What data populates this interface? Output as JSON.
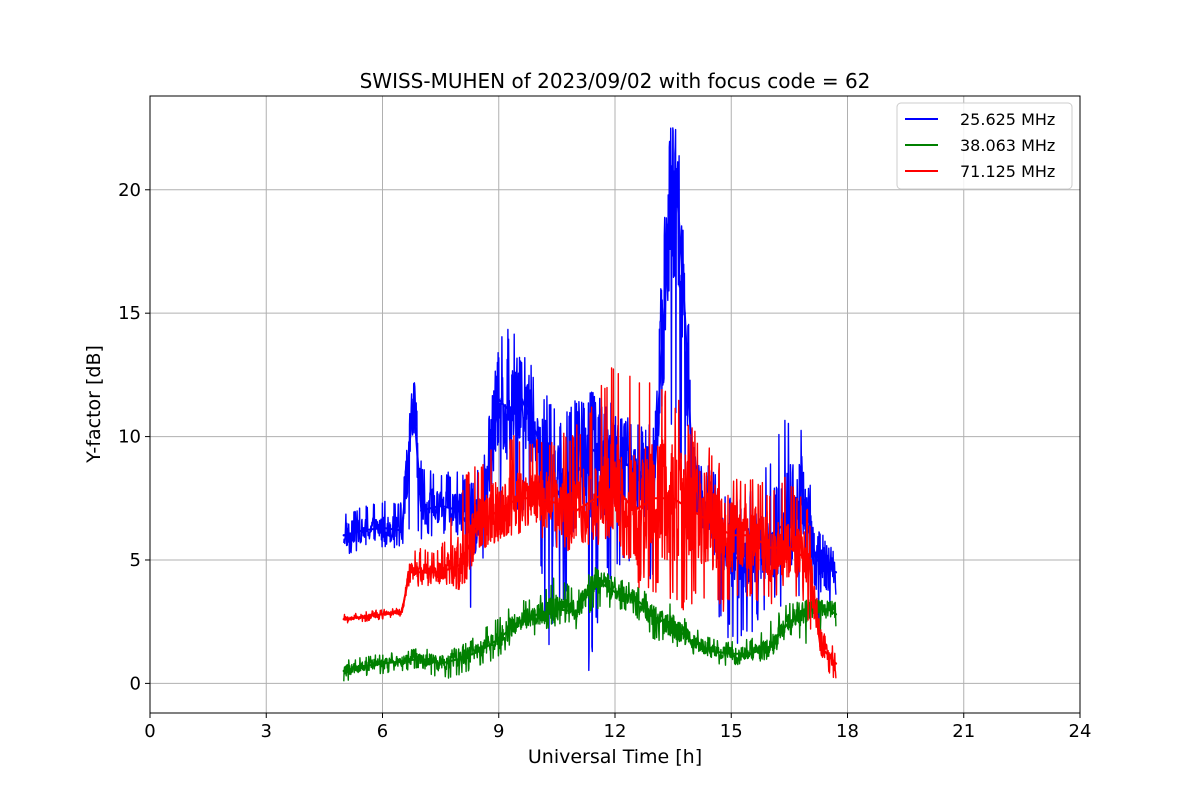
{
  "chart_data": {
    "type": "line",
    "title": "SWISS-MUHEN of 2023/09/02 with focus code = 62",
    "xlabel": "Universal Time [h]",
    "ylabel": "Y-factor [dB]",
    "xlim": [
      0,
      24
    ],
    "ylim": [
      -1.2,
      23.8
    ],
    "xticks": [
      0,
      3,
      6,
      9,
      12,
      15,
      18,
      21,
      24
    ],
    "xtick_labels": [
      "0",
      "3",
      "6",
      "9",
      "12",
      "15",
      "18",
      "21",
      "24"
    ],
    "yticks": [
      0,
      5,
      10,
      15,
      20
    ],
    "ytick_labels": [
      "0",
      "5",
      "10",
      "15",
      "20"
    ],
    "grid": true,
    "legend_position": "top-right",
    "series": [
      {
        "name": "25.625 MHz",
        "color": "#0000ff",
        "x": [
          5.0,
          5.5,
          6.0,
          6.5,
          6.8,
          7.0,
          7.5,
          8.0,
          8.3,
          8.6,
          9.0,
          9.3,
          9.6,
          10.0,
          10.3,
          10.6,
          11.0,
          11.4,
          11.8,
          12.2,
          12.6,
          13.0,
          13.4,
          13.6,
          13.8,
          14.0,
          14.4,
          14.8,
          15.2,
          15.6,
          16.0,
          16.4,
          16.8,
          17.2,
          17.7
        ],
        "values": [
          6.0,
          6.2,
          6.3,
          6.2,
          11.5,
          7.0,
          7.2,
          7.0,
          6.0,
          7.0,
          11.5,
          11.0,
          11.5,
          10.0,
          8.5,
          7.5,
          8.5,
          9.5,
          9.0,
          9.0,
          8.5,
          8.0,
          18.5,
          20.0,
          15.0,
          8.5,
          7.0,
          5.5,
          5.0,
          5.5,
          6.0,
          6.5,
          7.5,
          5.0,
          4.5
        ],
        "min": [
          5.0,
          5.5,
          5.5,
          5.5,
          5.5,
          5.8,
          6.0,
          6.0,
          2.5,
          5.0,
          6.0,
          7.0,
          7.0,
          6.0,
          0.5,
          3.0,
          2.5,
          0.0,
          4.0,
          5.0,
          4.5,
          4.0,
          9.0,
          9.5,
          8.0,
          5.0,
          4.0,
          2.0,
          1.5,
          2.0,
          3.0,
          2.5,
          3.0,
          1.5,
          3.5
        ],
        "max": [
          6.9,
          7.2,
          7.5,
          7.3,
          12.6,
          9.0,
          8.5,
          8.7,
          8.3,
          9.0,
          14.0,
          14.5,
          13.5,
          12.5,
          11.5,
          11.0,
          11.5,
          11.8,
          11.5,
          11.0,
          10.5,
          10.5,
          22.6,
          22.4,
          19.4,
          10.5,
          9.0,
          8.0,
          7.5,
          8.0,
          9.0,
          10.9,
          10.5,
          6.5,
          6.2
        ]
      },
      {
        "name": "38.063 MHz",
        "color": "#008000",
        "x": [
          5.0,
          5.5,
          6.0,
          6.5,
          7.0,
          7.5,
          8.0,
          8.5,
          9.0,
          9.5,
          10.0,
          10.5,
          11.0,
          11.5,
          12.0,
          12.5,
          13.0,
          13.5,
          14.0,
          14.5,
          15.0,
          15.5,
          16.0,
          16.5,
          17.0,
          17.5,
          17.7
        ],
        "values": [
          0.5,
          0.7,
          0.8,
          0.9,
          1.0,
          0.8,
          1.0,
          1.3,
          1.8,
          2.5,
          2.8,
          3.0,
          2.9,
          4.2,
          3.7,
          3.5,
          2.7,
          2.3,
          1.7,
          1.3,
          1.2,
          1.2,
          1.5,
          2.5,
          3.0,
          3.0,
          2.8
        ],
        "min": [
          0.0,
          0.3,
          0.4,
          0.5,
          0.6,
          0.1,
          0.3,
          0.7,
          1.0,
          1.8,
          2.0,
          2.3,
          2.2,
          3.0,
          3.0,
          2.8,
          1.7,
          1.5,
          1.2,
          0.8,
          0.7,
          0.8,
          1.0,
          2.0,
          1.5,
          2.2,
          2.3
        ],
        "max": [
          0.9,
          1.1,
          1.2,
          1.3,
          1.5,
          1.3,
          1.5,
          2.0,
          2.8,
          3.3,
          3.5,
          4.5,
          3.8,
          4.8,
          4.3,
          4.0,
          3.5,
          3.2,
          2.3,
          1.8,
          1.7,
          1.8,
          2.5,
          3.3,
          3.4,
          3.4,
          3.3
        ]
      },
      {
        "name": "71.125 MHz",
        "color": "#ff0000",
        "x": [
          5.0,
          5.5,
          6.0,
          6.5,
          6.7,
          7.0,
          7.5,
          8.0,
          8.5,
          9.0,
          9.5,
          10.0,
          10.5,
          11.0,
          11.5,
          12.0,
          12.5,
          13.0,
          13.5,
          14.0,
          14.5,
          15.0,
          15.5,
          16.0,
          16.5,
          17.0,
          17.3,
          17.7
        ],
        "values": [
          2.6,
          2.7,
          2.8,
          2.9,
          4.5,
          4.5,
          4.5,
          4.8,
          6.5,
          7.0,
          7.5,
          7.5,
          7.3,
          7.0,
          7.5,
          8.0,
          7.0,
          7.5,
          7.5,
          7.0,
          6.5,
          6.0,
          6.0,
          5.5,
          5.5,
          5.0,
          1.5,
          0.8
        ],
        "min": [
          2.4,
          2.5,
          2.6,
          2.7,
          3.8,
          3.9,
          4.0,
          3.8,
          5.0,
          5.8,
          6.0,
          6.0,
          5.5,
          5.0,
          5.5,
          6.0,
          4.0,
          3.5,
          2.8,
          3.0,
          2.6,
          3.0,
          3.5,
          3.0,
          4.0,
          2.5,
          0.6,
          0.1
        ],
        "max": [
          2.8,
          2.9,
          3.0,
          3.1,
          5.3,
          5.5,
          5.4,
          8.3,
          9.0,
          10.5,
          10.0,
          10.0,
          10.0,
          10.5,
          11.5,
          13.5,
          12.5,
          12.3,
          12.0,
          10.5,
          9.5,
          8.5,
          8.5,
          8.0,
          8.5,
          7.0,
          2.2,
          1.5
        ]
      }
    ]
  }
}
